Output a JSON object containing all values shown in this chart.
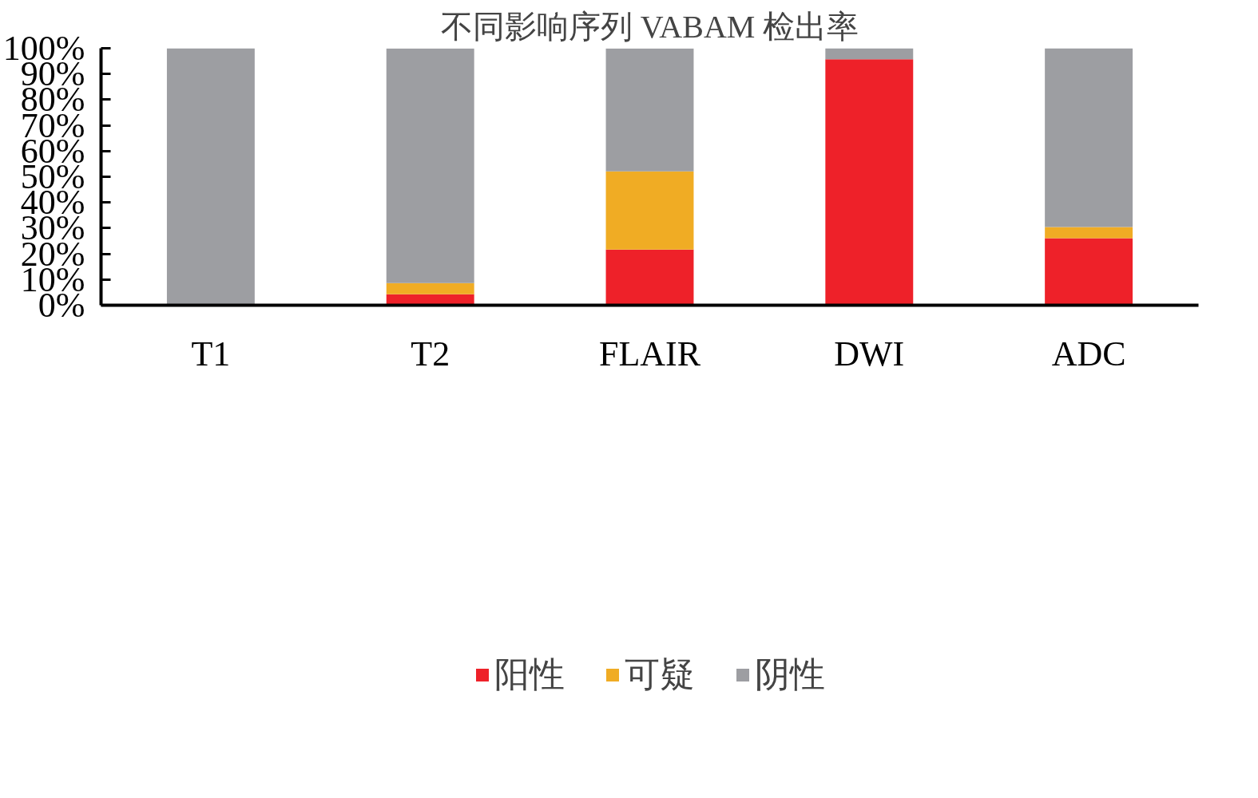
{
  "chart_data": {
    "type": "bar",
    "stacked": true,
    "title": "不同影响序列 VABAM 检出率",
    "categories": [
      "T1",
      "T2",
      "FLAIR",
      "DWI",
      "ADC"
    ],
    "series": [
      {
        "name": "阳性",
        "color": "#ee2129",
        "values": [
          0,
          4.3,
          21.7,
          95.7,
          26.1
        ]
      },
      {
        "name": "可疑",
        "color": "#f0ac24",
        "values": [
          0,
          4.3,
          30.4,
          0,
          4.3
        ]
      },
      {
        "name": "阴性",
        "color": "#9d9ea2",
        "values": [
          100,
          91.3,
          47.8,
          4.3,
          69.6
        ]
      }
    ],
    "ylim": [
      0,
      100
    ],
    "yticks": [
      {
        "value": 0,
        "label": "0%"
      },
      {
        "value": 10,
        "label": "10%"
      },
      {
        "value": 20,
        "label": "20%"
      },
      {
        "value": 30,
        "label": "30%"
      },
      {
        "value": 40,
        "label": "40%"
      },
      {
        "value": 50,
        "label": "50%"
      },
      {
        "value": 60,
        "label": "60%"
      },
      {
        "value": 70,
        "label": "70%"
      },
      {
        "value": 80,
        "label": "80%"
      },
      {
        "value": 90,
        "label": "90%"
      },
      {
        "value": 100,
        "label": "100%"
      }
    ],
    "grid": false,
    "legend": "bottom"
  }
}
